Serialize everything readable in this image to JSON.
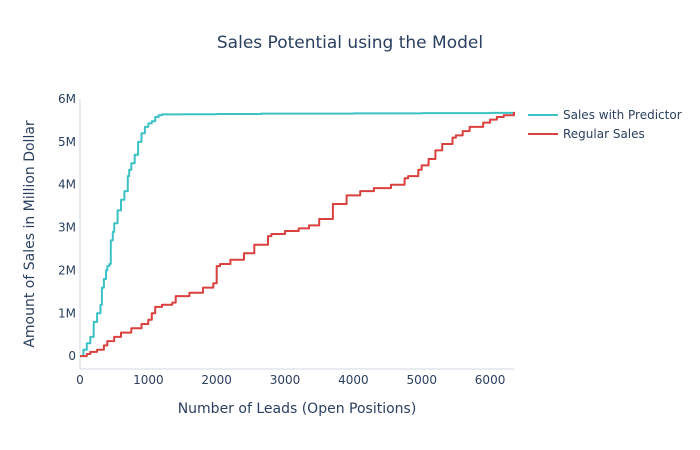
{
  "chart_data": {
    "type": "line",
    "title": "Sales Potential using the Model",
    "xlabel": "Number of Leads (Open Positions)",
    "ylabel": "Amount of Sales in Million Dollar",
    "xlim": [
      0,
      6350
    ],
    "ylim": [
      -300000,
      6000000
    ],
    "x_ticks": [
      0,
      1000,
      2000,
      3000,
      4000,
      5000,
      6000
    ],
    "x_tick_labels": [
      "0",
      "1000",
      "2000",
      "3000",
      "4000",
      "5000",
      "6000"
    ],
    "y_ticks": [
      0,
      1000000,
      2000000,
      3000000,
      4000000,
      5000000,
      6000000
    ],
    "y_tick_labels": [
      "0",
      "1M",
      "2M",
      "3M",
      "4M",
      "5M",
      "6M"
    ],
    "grid": false,
    "legend_position": "top-right",
    "series": [
      {
        "name": "Sales with Predictor",
        "color": "#3cc2c4",
        "x": [
          0,
          50,
          100,
          150,
          200,
          250,
          300,
          320,
          350,
          380,
          400,
          430,
          450,
          480,
          500,
          550,
          600,
          650,
          700,
          720,
          750,
          800,
          850,
          900,
          950,
          1000,
          1050,
          1100,
          1150,
          1200,
          1500,
          2000,
          2650,
          3000,
          4000,
          5000,
          6000,
          6350
        ],
        "y": [
          0,
          150000,
          300000,
          450000,
          800000,
          1000000,
          1200000,
          1600000,
          1800000,
          2000000,
          2100000,
          2150000,
          2700000,
          2900000,
          3100000,
          3400000,
          3650000,
          3850000,
          4200000,
          4350000,
          4500000,
          4700000,
          5000000,
          5200000,
          5350000,
          5430000,
          5480000,
          5580000,
          5620000,
          5640000,
          5645000,
          5650000,
          5660000,
          5660000,
          5665000,
          5670000,
          5675000,
          5690000
        ]
      },
      {
        "name": "Regular Sales",
        "color": "#d9403e",
        "x": [
          0,
          100,
          150,
          250,
          350,
          400,
          500,
          600,
          750,
          900,
          1000,
          1050,
          1100,
          1200,
          1350,
          1400,
          1600,
          1800,
          1950,
          2000,
          2050,
          2200,
          2400,
          2550,
          2750,
          2800,
          3000,
          3200,
          3350,
          3500,
          3700,
          3900,
          4100,
          4300,
          4550,
          4750,
          4800,
          4950,
          5000,
          5100,
          5200,
          5300,
          5450,
          5500,
          5600,
          5700,
          5900,
          6000,
          6100,
          6200,
          6350
        ],
        "y": [
          0,
          50000,
          100000,
          150000,
          250000,
          350000,
          450000,
          550000,
          650000,
          750000,
          850000,
          1000000,
          1150000,
          1200000,
          1250000,
          1400000,
          1480000,
          1600000,
          1700000,
          2100000,
          2150000,
          2250000,
          2400000,
          2600000,
          2800000,
          2850000,
          2920000,
          2980000,
          3050000,
          3200000,
          3550000,
          3750000,
          3850000,
          3920000,
          4000000,
          4150000,
          4200000,
          4350000,
          4450000,
          4600000,
          4800000,
          4950000,
          5100000,
          5150000,
          5250000,
          5350000,
          5450000,
          5520000,
          5580000,
          5620000,
          5700000
        ]
      }
    ]
  }
}
